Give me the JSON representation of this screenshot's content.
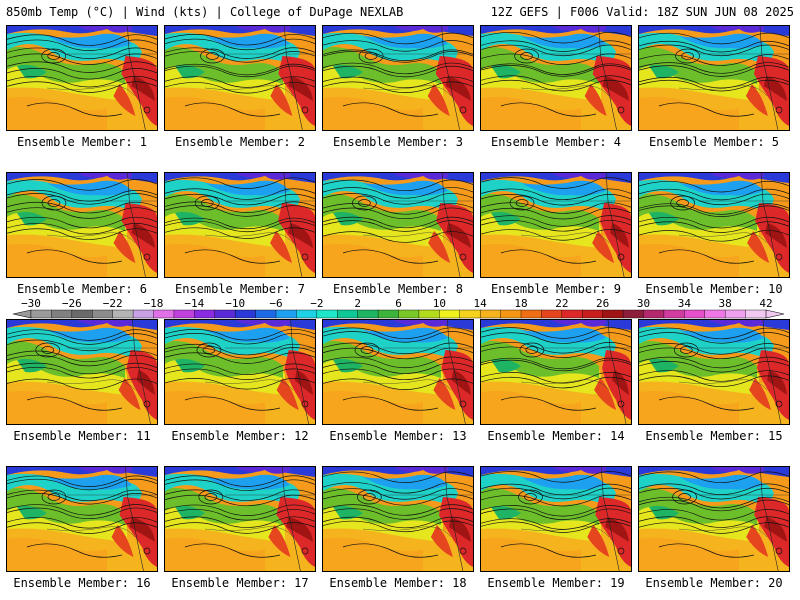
{
  "header": {
    "left": "850mb Temp (°C) | Wind (kts) | College of DuPage NEXLAB",
    "right": "12Z GEFS | F006 Valid: 18Z SUN JUN 08 2025"
  },
  "panels": [
    {
      "caption": "Ensemble Member: 1"
    },
    {
      "caption": "Ensemble Member: 2"
    },
    {
      "caption": "Ensemble Member: 3"
    },
    {
      "caption": "Ensemble Member: 4"
    },
    {
      "caption": "Ensemble Member: 5"
    },
    {
      "caption": "Ensemble Member: 6"
    },
    {
      "caption": "Ensemble Member: 7"
    },
    {
      "caption": "Ensemble Member: 8"
    },
    {
      "caption": "Ensemble Member: 9"
    },
    {
      "caption": "Ensemble Member: 10"
    },
    {
      "caption": "Ensemble Member: 11"
    },
    {
      "caption": "Ensemble Member: 12"
    },
    {
      "caption": "Ensemble Member: 13"
    },
    {
      "caption": "Ensemble Member: 14"
    },
    {
      "caption": "Ensemble Member: 15"
    },
    {
      "caption": "Ensemble Member: 16"
    },
    {
      "caption": "Ensemble Member: 17"
    },
    {
      "caption": "Ensemble Member: 18"
    },
    {
      "caption": "Ensemble Member: 19"
    },
    {
      "caption": "Ensemble Member: 20"
    }
  ],
  "chart_data": {
    "type": "heatmap",
    "title": "850mb Temp (°C) | Wind (kts)",
    "model_run": "12Z GEFS",
    "forecast_hour": "F006",
    "valid": "18Z SUN JUN 08 2025",
    "members": [
      1,
      2,
      3,
      4,
      5,
      6,
      7,
      8,
      9,
      10,
      11,
      12,
      13,
      14,
      15,
      16,
      17,
      18,
      19,
      20
    ],
    "colorbar": {
      "range": [
        -30,
        42
      ],
      "step": 2,
      "tick_labels": [
        "-30",
        "-26",
        "-22",
        "-18",
        "-14",
        "-10",
        "-6",
        "-2",
        "2",
        "6",
        "10",
        "14",
        "18",
        "22",
        "26",
        "30",
        "34",
        "38",
        "42"
      ],
      "colors": [
        "#9a9a9a",
        "#808080",
        "#6a6a6a",
        "#8c8c8c",
        "#b4b4b4",
        "#c8a0e6",
        "#e070e8",
        "#c040e0",
        "#8a2be2",
        "#5a2ad8",
        "#2a3ad8",
        "#1e6ae6",
        "#1ea0f0",
        "#1ed2e6",
        "#1ee6c8",
        "#10c896",
        "#1eb464",
        "#3cb43c",
        "#78c828",
        "#b4dc1e",
        "#f0f01e",
        "#f5d21e",
        "#f5b41e",
        "#f59614",
        "#f06e14",
        "#e6461e",
        "#dc2828",
        "#c81e1e",
        "#a01414",
        "#8c1e3c",
        "#b4286e",
        "#d23ca0",
        "#e650c8",
        "#f078e6",
        "#f0a0f0",
        "#f0c8f0"
      ]
    }
  }
}
